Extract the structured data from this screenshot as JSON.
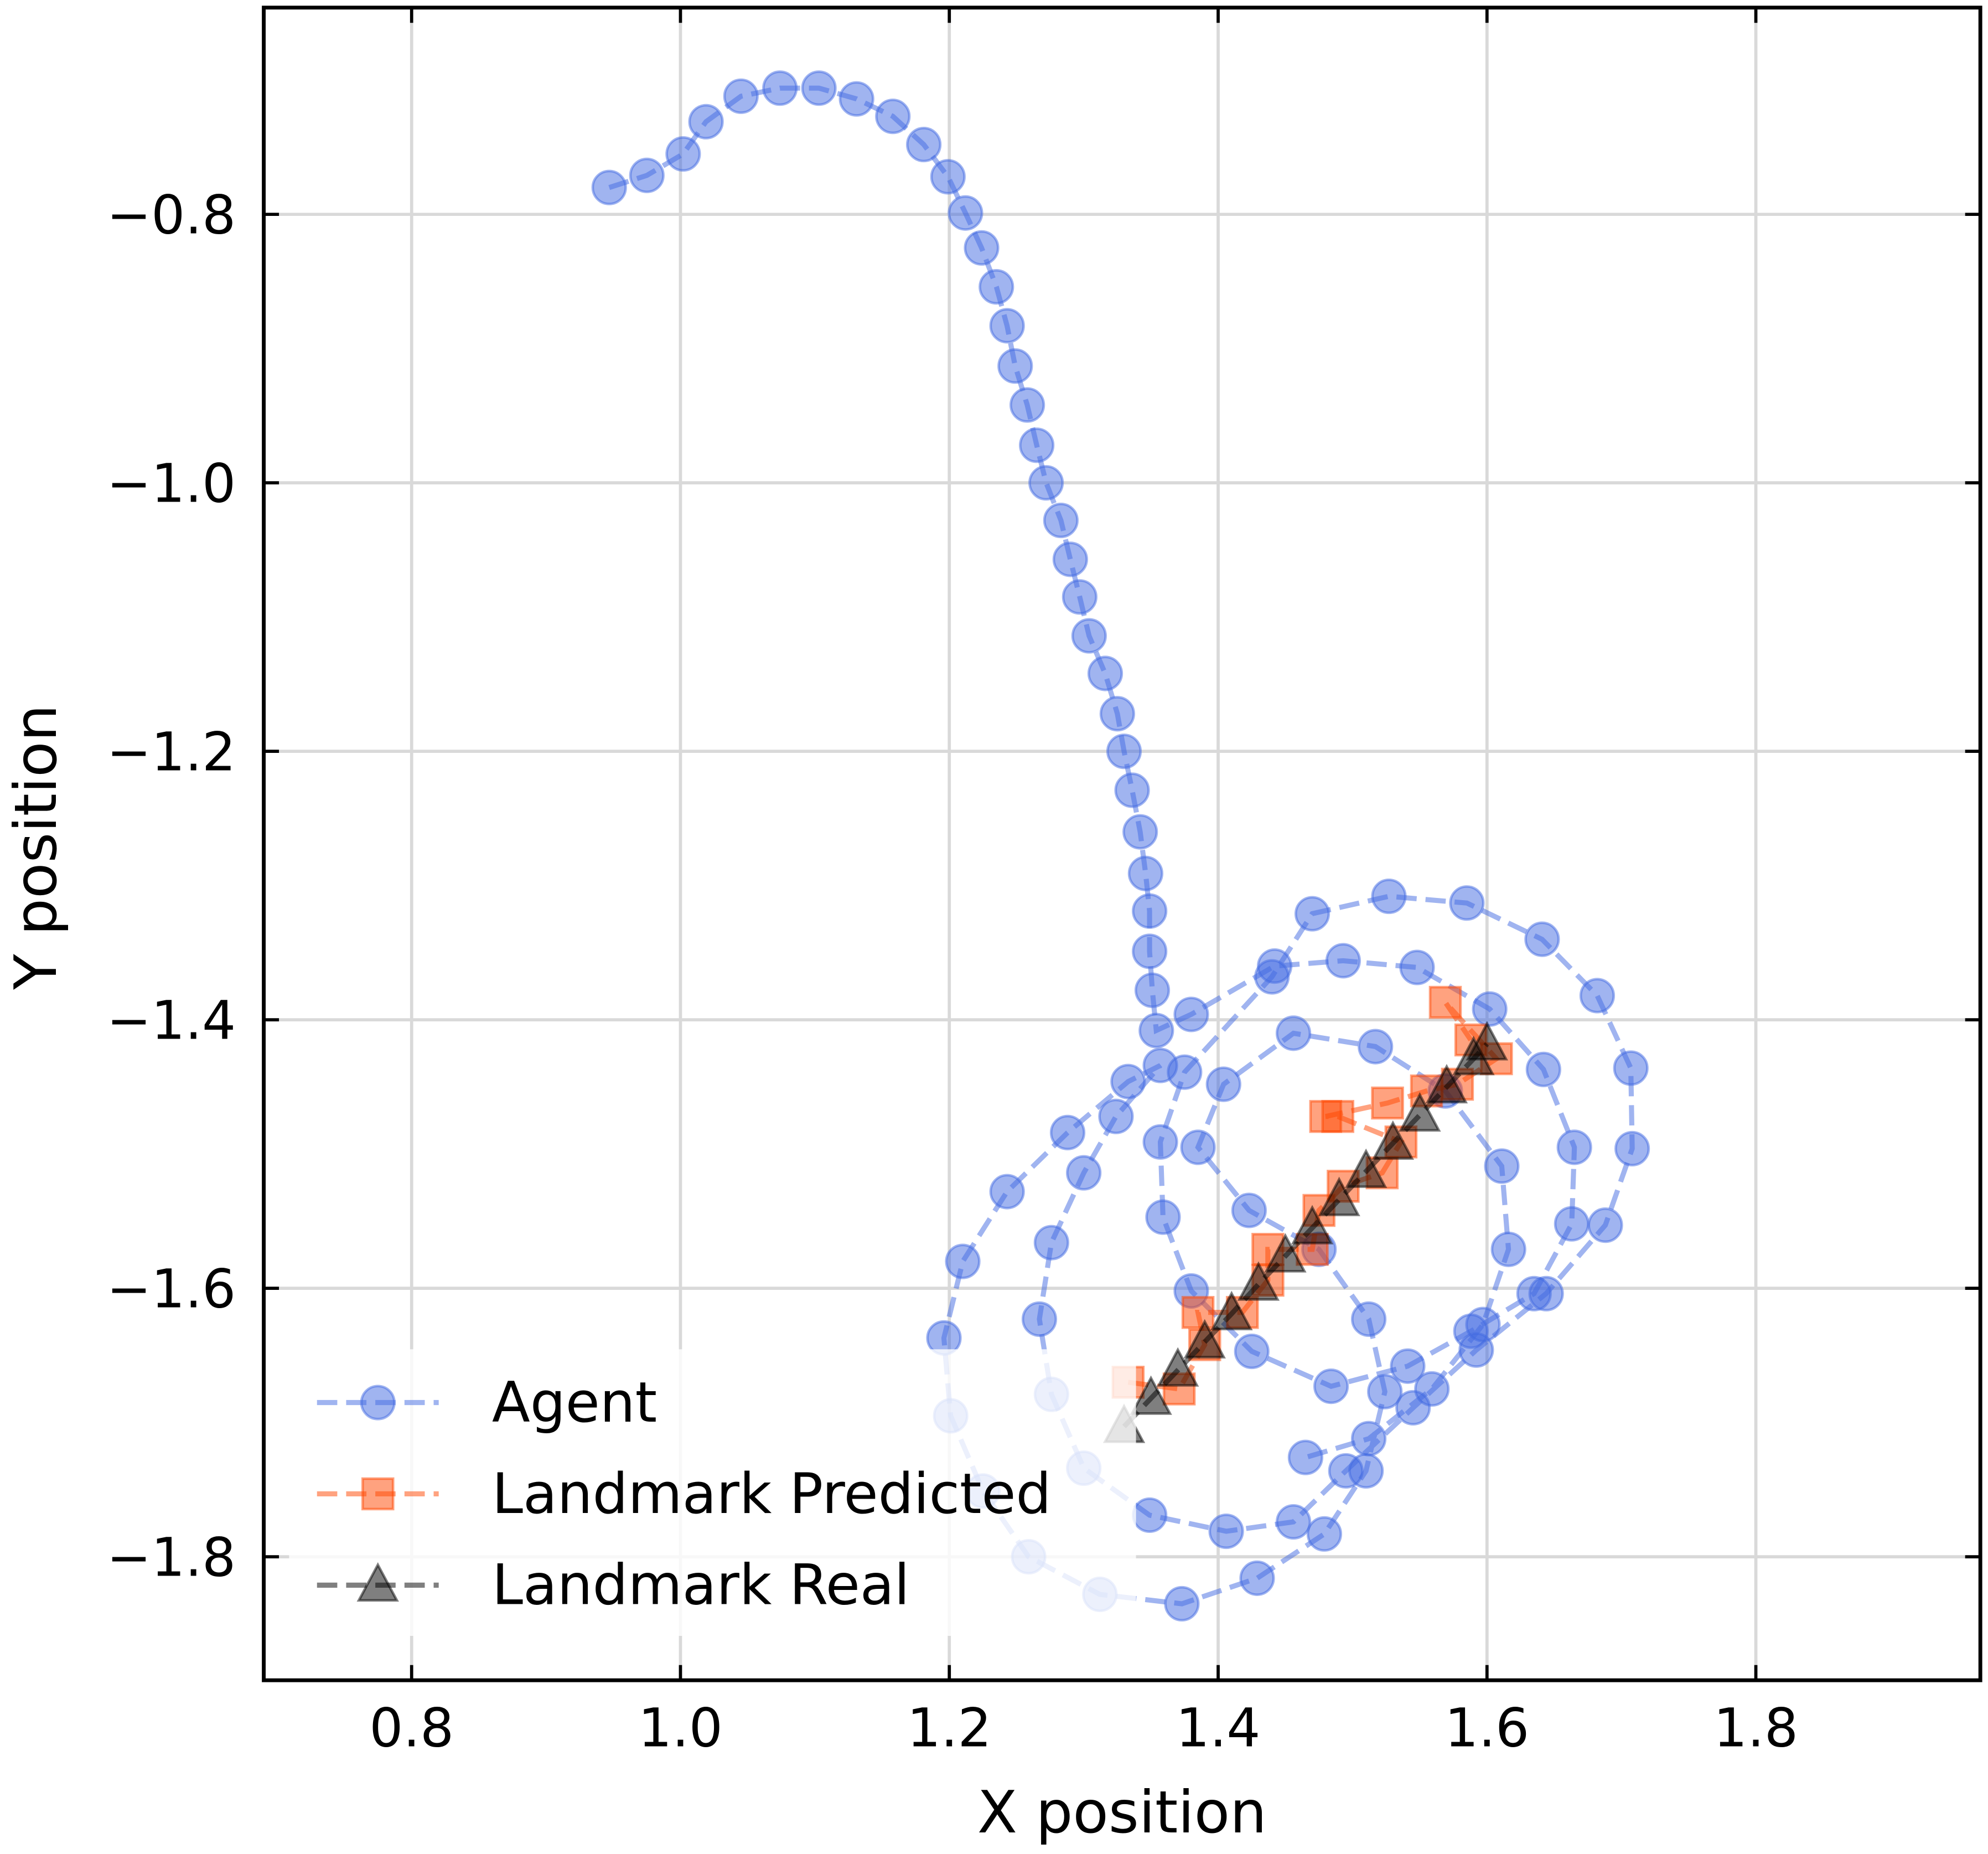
{
  "chart_data": {
    "type": "line",
    "x_label": "X position",
    "y_label": "Y position",
    "xlim": [
      0.69,
      1.967
    ],
    "ylim": [
      -1.892,
      -0.646
    ],
    "xticks": [
      0.8,
      {
        "value": 1.0,
        "label": "1.0"
      },
      1.2,
      1.4,
      1.6,
      1.8
    ],
    "yticks": [
      {
        "value": -0.8,
        "label": "−0.8"
      },
      {
        "value": -1.0,
        "label": "−1.0"
      },
      {
        "value": -1.2,
        "label": "−1.2"
      },
      {
        "value": -1.4,
        "label": "−1.4"
      },
      {
        "value": -1.6,
        "label": "−1.6"
      },
      {
        "value": -1.8,
        "label": "−1.8"
      }
    ],
    "grid": true,
    "legend": "lower left",
    "series": [
      {
        "name": "Agent",
        "color": "#4169e1",
        "marker": "circle",
        "alpha": 0.5,
        "x": [
          0.947,
          0.975,
          1.002,
          1.019,
          1.045,
          1.074,
          1.103,
          1.131,
          1.158,
          1.181,
          1.199,
          1.212,
          1.224,
          1.235,
          1.243,
          1.249,
          1.258,
          1.265,
          1.272,
          1.283,
          1.29,
          1.297,
          1.304,
          1.316,
          1.325,
          1.33,
          1.336,
          1.342,
          1.346,
          1.349,
          1.349,
          1.351,
          1.354,
          1.38,
          1.442,
          1.493,
          1.548,
          1.602,
          1.642,
          1.665,
          1.663,
          1.635,
          1.588,
          1.541,
          1.484,
          1.425,
          1.38,
          1.359,
          1.357,
          1.375,
          1.44,
          1.47,
          1.527,
          1.585,
          1.641,
          1.682,
          1.707,
          1.708,
          1.688,
          1.644,
          1.592,
          1.545,
          1.495,
          1.456,
          1.406,
          1.349,
          1.3,
          1.276,
          1.267,
          1.276,
          1.3,
          1.324,
          1.357,
          1.333,
          1.288,
          1.243,
          1.21,
          1.196,
          1.201,
          1.225,
          1.259,
          1.312,
          1.373,
          1.429,
          1.479,
          1.51,
          1.524,
          1.512,
          1.475,
          1.423,
          1.385,
          1.404,
          1.456,
          1.517,
          1.569,
          1.611,
          1.616,
          1.597,
          1.559,
          1.512,
          1.465
        ],
        "values": [
          -0.78,
          -0.771,
          -0.755,
          -0.731,
          -0.712,
          -0.706,
          -0.706,
          -0.714,
          -0.727,
          -0.748,
          -0.772,
          -0.799,
          -0.825,
          -0.854,
          -0.883,
          -0.913,
          -0.942,
          -0.972,
          -1.0,
          -1.028,
          -1.057,
          -1.085,
          -1.114,
          -1.142,
          -1.172,
          -1.2,
          -1.229,
          -1.26,
          -1.291,
          -1.319,
          -1.349,
          -1.378,
          -1.408,
          -1.396,
          -1.36,
          -1.356,
          -1.361,
          -1.392,
          -1.437,
          -1.495,
          -1.552,
          -1.604,
          -1.632,
          -1.658,
          -1.673,
          -1.647,
          -1.602,
          -1.547,
          -1.491,
          -1.439,
          -1.368,
          -1.321,
          -1.308,
          -1.313,
          -1.34,
          -1.382,
          -1.436,
          -1.496,
          -1.553,
          -1.604,
          -1.646,
          -1.689,
          -1.736,
          -1.774,
          -1.781,
          -1.769,
          -1.734,
          -1.679,
          -1.623,
          -1.566,
          -1.514,
          -1.472,
          -1.434,
          -1.446,
          -1.484,
          -1.528,
          -1.58,
          -1.637,
          -1.695,
          -1.751,
          -1.8,
          -1.828,
          -1.835,
          -1.816,
          -1.783,
          -1.736,
          -1.677,
          -1.623,
          -1.571,
          -1.542,
          -1.495,
          -1.448,
          -1.41,
          -1.42,
          -1.453,
          -1.509,
          -1.571,
          -1.627,
          -1.675,
          -1.712,
          -1.726
        ]
      },
      {
        "name": "Landmark Predicted",
        "color": "#ff4500",
        "marker": "square",
        "alpha": 0.5,
        "x": [
          1.333,
          1.371,
          1.39,
          1.385,
          1.418,
          1.437,
          1.437,
          1.47,
          1.475,
          1.493,
          1.522,
          1.536,
          1.489,
          1.48,
          1.526,
          1.555,
          1.578,
          1.607,
          1.569,
          1.588
        ],
        "values": [
          -1.67,
          -1.675,
          -1.642,
          -1.618,
          -1.618,
          -1.594,
          -1.571,
          -1.571,
          -1.542,
          -1.524,
          -1.514,
          -1.491,
          -1.472,
          -1.472,
          -1.462,
          -1.453,
          -1.448,
          -1.429,
          -1.387,
          -1.415
        ]
      },
      {
        "name": "Landmark Real",
        "color": "#000000",
        "marker": "triangle",
        "alpha": 0.5,
        "x": [
          1.33,
          1.35,
          1.37,
          1.39,
          1.41,
          1.43,
          1.45,
          1.47,
          1.49,
          1.51,
          1.53,
          1.55,
          1.57,
          1.59,
          1.6
        ],
        "values": [
          -1.703,
          -1.682,
          -1.661,
          -1.64,
          -1.619,
          -1.597,
          -1.576,
          -1.555,
          -1.534,
          -1.513,
          -1.492,
          -1.471,
          -1.45,
          -1.429,
          -1.418
        ]
      }
    ]
  }
}
